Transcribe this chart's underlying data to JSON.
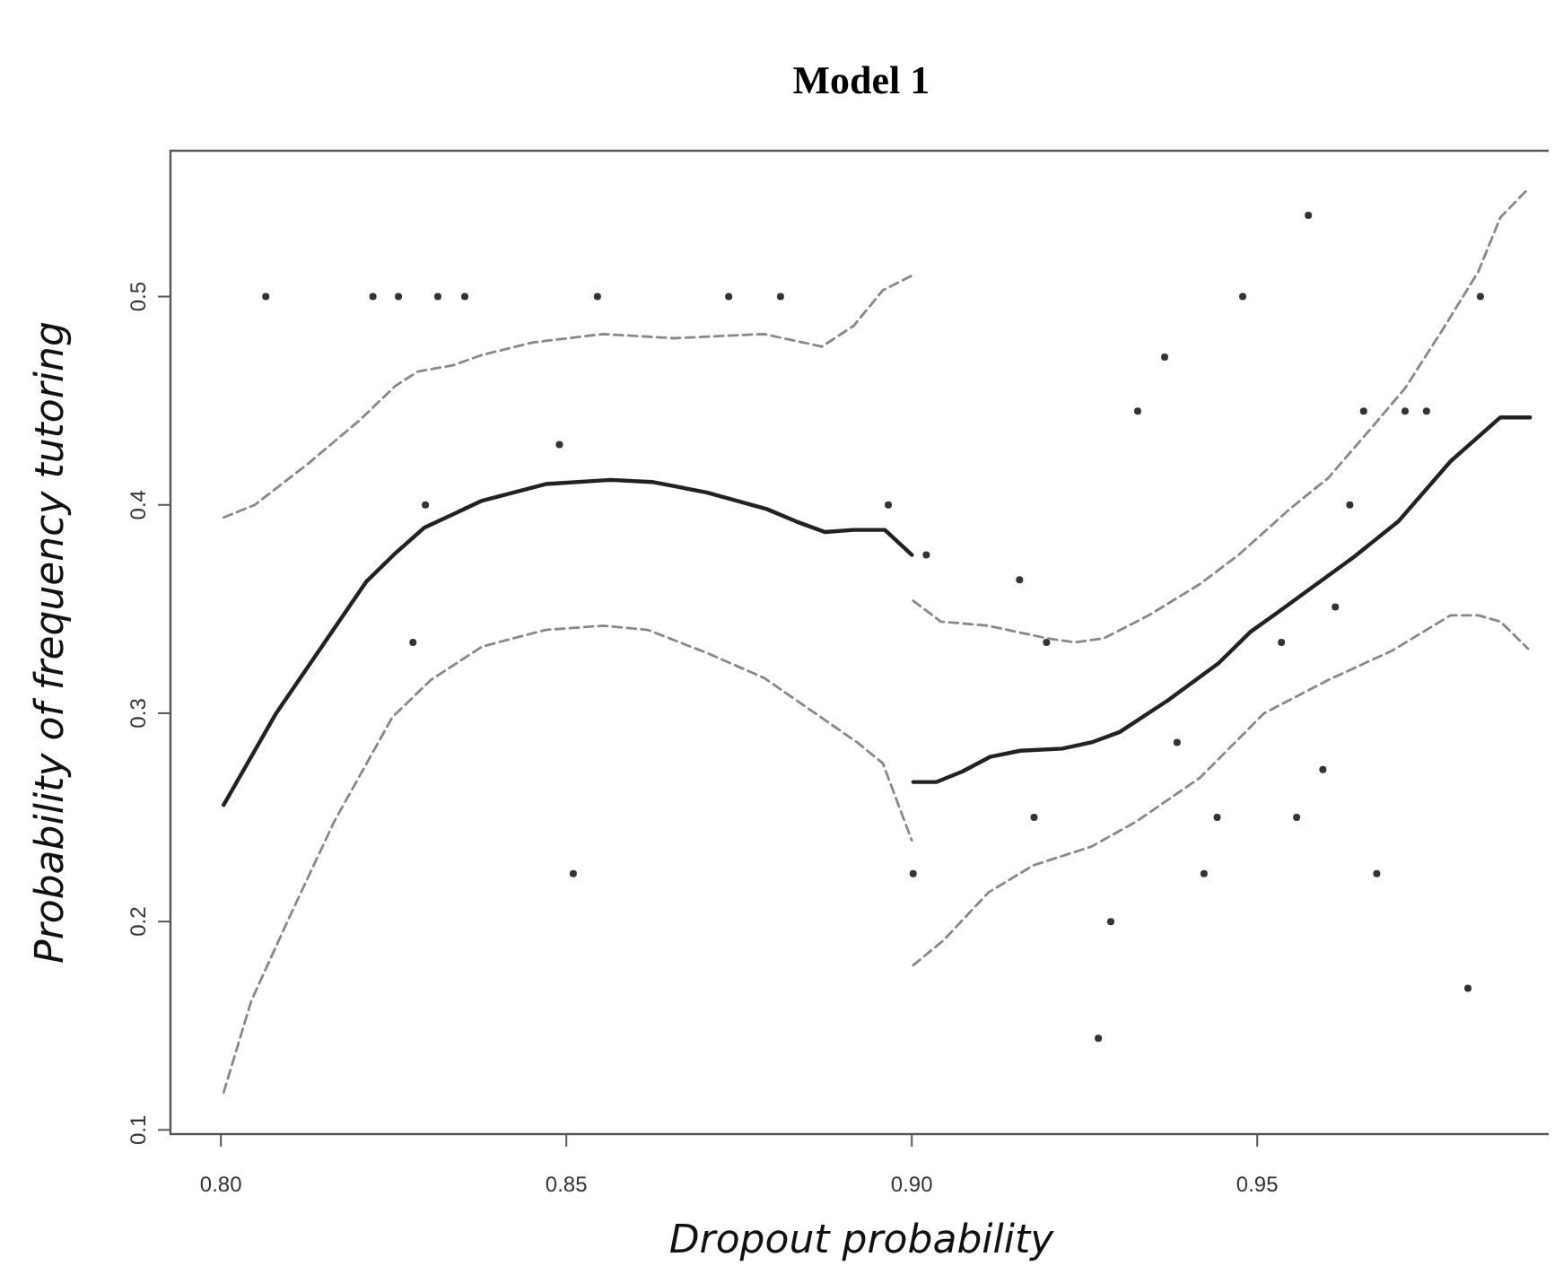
{
  "chart_data": {
    "type": "line",
    "title": "Model 1",
    "xlabel": "Dropout probability",
    "ylabel": "Probability of frequency tutoring",
    "xlim": [
      0.7927,
      0.9927
    ],
    "ylim": [
      0.098,
      0.57
    ],
    "xticks": [
      {
        "value": 0.8,
        "label": "0.80"
      },
      0.85,
      {
        "value": 0.9,
        "label": "0.90"
      },
      0.95
    ],
    "yticks": [
      0.1,
      0.2,
      0.3,
      0.4,
      0.5
    ],
    "grid": false,
    "marker": "none",
    "series": [
      {
        "type": "scatter",
        "marker": "circle",
        "color": "#333333",
        "x": [
          0.8065,
          0.822,
          0.8257,
          0.8314,
          0.8353,
          0.8545,
          0.8735,
          0.881,
          0.849,
          0.8296,
          0.8278,
          0.851,
          0.8966,
          0.9021,
          0.9002,
          0.9574,
          0.9479,
          0.9823,
          0.9366,
          0.9327,
          0.9654,
          0.9714,
          0.9745,
          0.9156,
          0.9634,
          0.9613,
          0.9535,
          0.9195,
          0.9384,
          0.9595,
          0.9177,
          0.9442,
          0.9557,
          0.9423,
          0.9673,
          0.9288,
          0.9805,
          0.927
        ],
        "values": [
          0.5,
          0.5,
          0.5,
          0.5,
          0.5,
          0.5,
          0.5,
          0.5,
          0.429,
          0.4,
          0.334,
          0.223,
          0.4,
          0.376,
          0.223,
          0.539,
          0.5,
          0.5,
          0.471,
          0.445,
          0.445,
          0.445,
          0.445,
          0.364,
          0.4,
          0.351,
          0.334,
          0.334,
          0.286,
          0.273,
          0.25,
          0.25,
          0.25,
          0.223,
          0.223,
          0.2,
          0.168,
          0.144
        ]
      },
      {
        "color": "#222222",
        "line_style": "solid",
        "x": [
          0.8004,
          0.808,
          0.821,
          0.825,
          0.8294,
          0.8378,
          0.847,
          0.8564,
          0.8624,
          0.8703,
          0.879,
          0.8833,
          0.8874,
          0.8916,
          0.8961,
          0.9
        ],
        "values": [
          0.256,
          0.3,
          0.363,
          0.376,
          0.389,
          0.402,
          0.41,
          0.412,
          0.411,
          0.406,
          0.398,
          0.392,
          0.387,
          0.388,
          0.388,
          0.376
        ]
      },
      {
        "color": "#888888",
        "line_style": "dashed",
        "x": [
          0.8004,
          0.8049,
          0.8127,
          0.8202,
          0.8252,
          0.8285,
          0.8336,
          0.8378,
          0.8452,
          0.8553,
          0.8657,
          0.8786,
          0.8842,
          0.887,
          0.8916,
          0.8958,
          0.9
        ],
        "values": [
          0.394,
          0.4,
          0.42,
          0.441,
          0.457,
          0.464,
          0.467,
          0.472,
          0.478,
          0.482,
          0.48,
          0.482,
          0.478,
          0.476,
          0.486,
          0.503,
          0.51
        ]
      },
      {
        "color": "#888888",
        "line_style": "dashed",
        "x": [
          0.8004,
          0.8044,
          0.8099,
          0.8164,
          0.8248,
          0.8304,
          0.8378,
          0.847,
          0.8553,
          0.8618,
          0.8703,
          0.8786,
          0.886,
          0.8921,
          0.8958,
          0.9
        ],
        "values": [
          0.118,
          0.162,
          0.202,
          0.248,
          0.298,
          0.316,
          0.332,
          0.34,
          0.342,
          0.34,
          0.329,
          0.317,
          0.3,
          0.286,
          0.276,
          0.239
        ]
      },
      {
        "color": "#222222",
        "line_style": "solid",
        "x": [
          0.9002,
          0.9036,
          0.9073,
          0.9113,
          0.9157,
          0.9218,
          0.926,
          0.9301,
          0.937,
          0.9444,
          0.949,
          0.9528,
          0.964,
          0.9704,
          0.978,
          0.9852,
          0.9895
        ],
        "values": [
          0.267,
          0.267,
          0.272,
          0.279,
          0.282,
          0.283,
          0.286,
          0.291,
          0.306,
          0.324,
          0.339,
          0.348,
          0.375,
          0.392,
          0.421,
          0.442,
          0.442
        ]
      },
      {
        "color": "#888888",
        "line_style": "dashed",
        "x": [
          0.9002,
          0.9042,
          0.9111,
          0.9195,
          0.9236,
          0.9278,
          0.9343,
          0.9417,
          0.9473,
          0.9547,
          0.9603,
          0.9668,
          0.9714,
          0.977,
          0.982,
          0.9852,
          0.989
        ],
        "values": [
          0.354,
          0.344,
          0.342,
          0.336,
          0.334,
          0.336,
          0.347,
          0.362,
          0.376,
          0.398,
          0.413,
          0.438,
          0.456,
          0.485,
          0.512,
          0.538,
          0.551
        ]
      },
      {
        "color": "#888888",
        "line_style": "dashed",
        "x": [
          0.9002,
          0.9046,
          0.9111,
          0.9176,
          0.926,
          0.9325,
          0.9417,
          0.951,
          0.9603,
          0.9695,
          0.978,
          0.982,
          0.9852,
          0.9892
        ],
        "values": [
          0.179,
          0.191,
          0.214,
          0.227,
          0.236,
          0.248,
          0.269,
          0.3,
          0.316,
          0.33,
          0.347,
          0.347,
          0.344,
          0.331
        ]
      }
    ]
  }
}
